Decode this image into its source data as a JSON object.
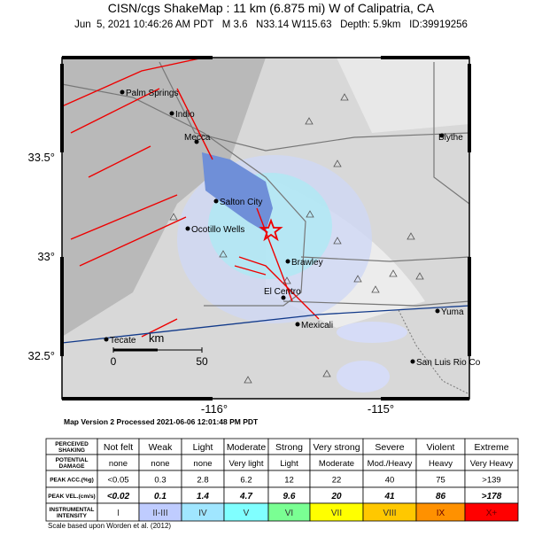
{
  "header": {
    "title": "CISN/cgs ShakeMap : 11 km (6.875 mi) W of Calipatria, CA",
    "subtitle": "Jun  5, 2021 10:46:26 AM PDT   M 3.6   N33.14 W115.63   Depth: 5.9km   ID:39919256"
  },
  "map": {
    "lat_labels": [
      "33.5°",
      "33°",
      "32.5°"
    ],
    "lon_labels": [
      "-116°",
      "-115°"
    ],
    "cities": [
      "Palm Springs",
      "Indio",
      "Mecca",
      "Blythe",
      "Salton City",
      "Ocotillo Wells",
      "Brawley",
      "El Centro",
      "Mexicali",
      "Tecate",
      "Yuma",
      "San Luis Rio Co"
    ],
    "scale_bar": {
      "unit": "km",
      "ticks": [
        "0",
        "50"
      ]
    },
    "version_note": "Map Version 2 Processed 2021-06-06 12:01:48 PM PDT"
  },
  "table": {
    "rows": [
      {
        "label": "PERCEIVED SHAKING",
        "cells": [
          "Not felt",
          "Weak",
          "Light",
          "Moderate",
          "Strong",
          "Very strong",
          "Severe",
          "Violent",
          "Extreme"
        ]
      },
      {
        "label": "POTENTIAL DAMAGE",
        "cells": [
          "none",
          "none",
          "none",
          "Very light",
          "Light",
          "Moderate",
          "Mod./Heavy",
          "Heavy",
          "Very Heavy"
        ]
      },
      {
        "label": "PEAK ACC.(%g)",
        "cells": [
          "<0.05",
          "0.3",
          "2.8",
          "6.2",
          "12",
          "22",
          "40",
          "75",
          ">139"
        ]
      },
      {
        "label": "PEAK VEL.(cm/s)",
        "cells": [
          "<0.02",
          "0.1",
          "1.4",
          "4.7",
          "9.6",
          "20",
          "41",
          "86",
          ">178"
        ]
      },
      {
        "label": "INSTRUMENTAL INTENSITY",
        "cells": [
          "I",
          "II-III",
          "IV",
          "V",
          "VI",
          "VII",
          "VIII",
          "IX",
          "X+"
        ]
      }
    ],
    "intensity_colors": [
      "#ffffff",
      "#bfccff",
      "#a0e6ff",
      "#80ffff",
      "#7aff93",
      "#ffff00",
      "#ffc800",
      "#ff9100",
      "#ff0000"
    ]
  },
  "footnote": "Scale based upon Worden et al. (2012)"
}
